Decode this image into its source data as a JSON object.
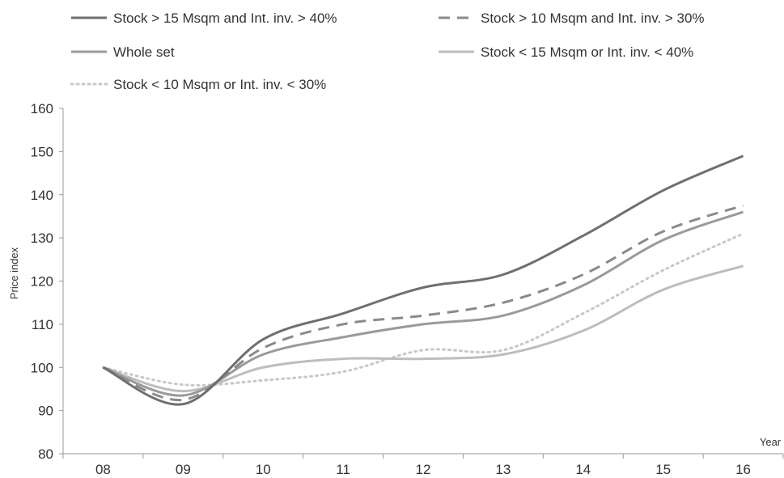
{
  "chart_data": {
    "type": "line",
    "title": "",
    "xlabel": "Year",
    "ylabel": "Price index",
    "ylim": [
      80,
      160
    ],
    "yticks": [
      80,
      90,
      100,
      110,
      120,
      130,
      140,
      150,
      160
    ],
    "categories": [
      "08",
      "09",
      "10",
      "11",
      "12",
      "13",
      "14",
      "15",
      "16"
    ],
    "grid": false,
    "legend_position": "top",
    "series": [
      {
        "name": "Stock > 15 Msqm and Int. inv. > 40%",
        "color": "#6f6f6f",
        "dash": "solid",
        "values": [
          100,
          91.5,
          106.5,
          112.5,
          118.5,
          121.5,
          130.5,
          141,
          149
        ]
      },
      {
        "name": "Stock > 10 Msqm and Int. inv. > 30%",
        "color": "#8a8a8a",
        "dash": "dashed",
        "values": [
          100,
          92.5,
          104.5,
          110,
          112,
          115,
          121.5,
          131.5,
          137.5
        ]
      },
      {
        "name": "Whole set",
        "color": "#9a9a9a",
        "dash": "solid",
        "values": [
          100,
          93.5,
          103,
          107,
          110,
          112,
          119,
          129.5,
          136
        ]
      },
      {
        "name": "Stock < 15 Msqm or Int. inv. < 40%",
        "color": "#bdbdbd",
        "dash": "solid",
        "values": [
          100,
          94.5,
          100,
          102,
          102,
          103,
          108.5,
          118,
          123.5
        ]
      },
      {
        "name": "Stock < 10 Msqm  or Int. inv. < 30%",
        "color": "#c8c8c8",
        "dash": "dotted",
        "values": [
          100,
          96,
          97,
          99,
          104,
          104,
          112.5,
          122.5,
          131
        ]
      }
    ]
  }
}
